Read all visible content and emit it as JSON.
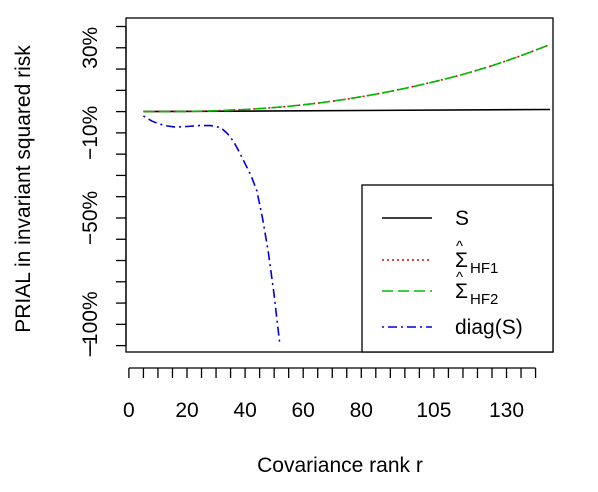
{
  "chart_data": {
    "type": "line",
    "xlabel": "Covariance rank r",
    "ylabel": "PRIAL in invariant squared risk",
    "x_ticks": [
      {
        "value": 0,
        "label": "0"
      },
      {
        "value": 20,
        "label": "20"
      },
      {
        "value": 40,
        "label": "40"
      },
      {
        "value": 60,
        "label": "60"
      },
      {
        "value": 80,
        "label": "80"
      },
      {
        "value": 105,
        "label": "105"
      },
      {
        "value": 130,
        "label": "130"
      }
    ],
    "x_minor_ticks": [
      0,
      5,
      10,
      15,
      20,
      25,
      30,
      35,
      40,
      45,
      50,
      55,
      60,
      65,
      70,
      75,
      80,
      85,
      90,
      95,
      100,
      105,
      110,
      115,
      120,
      125,
      130,
      135,
      140
    ],
    "y_ticks": [
      {
        "value": 30,
        "label": "30%"
      },
      {
        "value": -10,
        "label": "−10%"
      },
      {
        "value": -50,
        "label": "−50%"
      },
      {
        "value": -100,
        "label": "−100%"
      }
    ],
    "y_minor_ticks": [
      40,
      30,
      20,
      10,
      0,
      -10,
      -20,
      -30,
      -40,
      -50,
      -60,
      -70,
      -80,
      -90,
      -100,
      -110
    ],
    "y_end_label": "−",
    "xlim": [
      -1,
      146
    ],
    "ylim": [
      -113,
      44
    ],
    "legend_position": "bottom-right",
    "series": [
      {
        "name": "S",
        "color": "#000000",
        "dash": "solid",
        "x": [
          5,
          145
        ],
        "y": [
          0,
          1
        ]
      },
      {
        "name": "Σ̂HF1",
        "legend_main": "Σ",
        "legend_sub": "HF1",
        "color": "#dd0000",
        "dash": "dotted",
        "x": [
          5,
          10,
          15,
          20,
          25,
          30,
          35,
          40,
          45,
          50,
          55,
          60,
          65,
          70,
          75,
          80,
          85,
          90,
          95,
          100,
          105,
          110,
          115,
          120,
          125,
          130,
          135,
          140,
          145
        ],
        "y": [
          0,
          0,
          0,
          0.1,
          0.2,
          0.4,
          0.7,
          1.0,
          1.4,
          1.9,
          2.5,
          3.2,
          4.0,
          4.9,
          5.9,
          7.0,
          8.2,
          9.5,
          10.9,
          12.4,
          14.0,
          15.7,
          17.5,
          19.5,
          21.6,
          23.9,
          26.3,
          28.9,
          31.5
        ]
      },
      {
        "name": "Σ̂HF2",
        "legend_main": "Σ",
        "legend_sub": "HF2",
        "color": "#00bb00",
        "dash": "dashed",
        "x": [
          5,
          10,
          15,
          20,
          25,
          30,
          35,
          40,
          45,
          50,
          55,
          60,
          65,
          70,
          75,
          80,
          85,
          90,
          95,
          100,
          105,
          110,
          115,
          120,
          125,
          130,
          135,
          140,
          145
        ],
        "y": [
          0,
          0,
          0,
          0.1,
          0.2,
          0.4,
          0.7,
          1.0,
          1.4,
          1.9,
          2.5,
          3.2,
          4.0,
          4.9,
          5.9,
          7.0,
          8.2,
          9.5,
          10.9,
          12.4,
          14.0,
          15.7,
          17.5,
          19.5,
          21.6,
          23.9,
          26.3,
          28.9,
          31.5
        ]
      },
      {
        "name": "diag(S)",
        "color": "#0000dd",
        "dash": "dashdot",
        "x": [
          5,
          8,
          12,
          16,
          20,
          24,
          28,
          30,
          32,
          34,
          36,
          38,
          40,
          42,
          44,
          46,
          48,
          50,
          51,
          52
        ],
        "y": [
          -2,
          -4.5,
          -6.5,
          -7.3,
          -7,
          -6.6,
          -6.6,
          -6.9,
          -8,
          -10.5,
          -14,
          -19,
          -24.5,
          -30,
          -37,
          -50,
          -66,
          -86,
          -98,
          -110
        ]
      }
    ]
  }
}
